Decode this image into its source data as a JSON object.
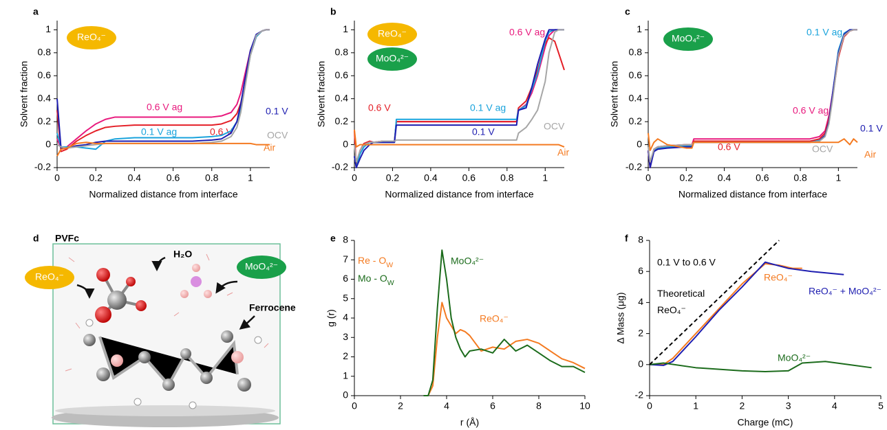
{
  "chart_data": [
    {
      "type": "line",
      "panel": "a",
      "xlabel": "Normalized distance from interface",
      "ylabel": "Solvent fraction",
      "xlim": [
        0,
        1.1
      ],
      "ylim": [
        -0.2,
        1.08
      ],
      "xticks": [
        0,
        0.2,
        0.4,
        0.6,
        0.8,
        1
      ],
      "yticks": [
        -0.2,
        0,
        0.2,
        0.4,
        0.6,
        0.8,
        1
      ],
      "badges": [
        {
          "text": "ReO₄⁻",
          "color": "#f5b800"
        }
      ],
      "x": [
        0,
        0.02,
        0.05,
        0.1,
        0.15,
        0.2,
        0.25,
        0.3,
        0.4,
        0.5,
        0.6,
        0.7,
        0.8,
        0.85,
        0.9,
        0.93,
        0.95,
        0.97,
        1.0,
        1.03,
        1.06,
        1.08,
        1.1
      ],
      "series": [
        {
          "name": "0.6 V ag",
          "color": "#e8197d",
          "values": [
            0.05,
            -0.03,
            -0.02,
            0.05,
            0.12,
            0.18,
            0.22,
            0.24,
            0.24,
            0.24,
            0.24,
            0.24,
            0.24,
            0.25,
            0.28,
            0.35,
            0.45,
            0.6,
            0.82,
            0.95,
            0.99,
            1.0,
            1.0
          ]
        },
        {
          "name": "0.6 V",
          "color": "#e41e26",
          "values": [
            0.3,
            -0.06,
            -0.04,
            0.03,
            0.08,
            0.12,
            0.15,
            0.16,
            0.17,
            0.17,
            0.17,
            0.17,
            0.17,
            0.18,
            0.21,
            0.27,
            0.36,
            0.52,
            0.78,
            0.94,
            0.99,
            1.0,
            1.0
          ]
        },
        {
          "name": "0.1 V ag",
          "color": "#19a3dc",
          "values": [
            0.1,
            -0.02,
            -0.02,
            -0.02,
            -0.03,
            -0.04,
            0.03,
            0.05,
            0.06,
            0.06,
            0.06,
            0.06,
            0.07,
            0.08,
            0.12,
            0.2,
            0.3,
            0.5,
            0.78,
            0.94,
            0.99,
            1.0,
            1.0
          ]
        },
        {
          "name": "0.1 V",
          "color": "#1d1db0",
          "values": [
            0.4,
            -0.03,
            -0.03,
            -0.01,
            0.0,
            0.02,
            0.03,
            0.03,
            0.03,
            0.03,
            0.03,
            0.03,
            0.04,
            0.05,
            0.1,
            0.2,
            0.35,
            0.55,
            0.82,
            0.96,
            0.99,
            1.0,
            1.0
          ]
        },
        {
          "name": "OCV",
          "color": "#a6a6a6",
          "values": [
            0.0,
            -0.02,
            -0.03,
            -0.02,
            -0.01,
            0.0,
            0.01,
            0.01,
            0.01,
            0.01,
            0.01,
            0.01,
            0.02,
            0.03,
            0.07,
            0.15,
            0.28,
            0.48,
            0.78,
            0.95,
            0.99,
            1.0,
            1.0
          ]
        },
        {
          "name": "Air",
          "color": "#f47a20",
          "values": [
            -0.1,
            -0.04,
            -0.03,
            0.01,
            0.02,
            0.01,
            0.01,
            0.01,
            0.01,
            0.01,
            0.01,
            0.01,
            0.01,
            0.01,
            0.01,
            0.01,
            0.01,
            0.01,
            0.01,
            0.0,
            0.0,
            0.0,
            0.0
          ]
        }
      ]
    },
    {
      "type": "line",
      "panel": "b",
      "xlabel": "Normalized distance from interface",
      "ylabel": "Solvent fraction",
      "xlim": [
        0,
        1.1
      ],
      "ylim": [
        -0.2,
        1.08
      ],
      "xticks": [
        0,
        0.2,
        0.4,
        0.6,
        0.8,
        1
      ],
      "yticks": [
        -0.2,
        0,
        0.2,
        0.4,
        0.6,
        0.8,
        1
      ],
      "badges": [
        {
          "text": "ReO₄⁻",
          "color": "#f5b800"
        },
        {
          "text": "MoO₄²⁻",
          "color": "#1aa04a"
        }
      ],
      "x": [
        0,
        0.01,
        0.03,
        0.05,
        0.08,
        0.1,
        0.15,
        0.21,
        0.22,
        0.3,
        0.5,
        0.7,
        0.85,
        0.86,
        0.9,
        0.93,
        0.96,
        1.0,
        1.02,
        1.05,
        1.07,
        1.1
      ],
      "series": [
        {
          "name": "0.6 V ag",
          "color": "#e8197d",
          "values": [
            -0.1,
            -0.2,
            -0.05,
            0.0,
            0.03,
            0.02,
            0.03,
            0.03,
            0.2,
            0.2,
            0.2,
            0.2,
            0.2,
            0.3,
            0.35,
            0.45,
            0.6,
            0.85,
            0.95,
            1.0,
            1.0,
            1.0
          ]
        },
        {
          "name": "0.6 V",
          "color": "#e41e26",
          "values": [
            0.12,
            -0.2,
            -0.05,
            0.01,
            0.03,
            0.02,
            0.03,
            0.03,
            0.2,
            0.2,
            0.2,
            0.2,
            0.2,
            0.32,
            0.38,
            0.5,
            0.65,
            0.88,
            0.93,
            0.9,
            0.8,
            0.65
          ]
        },
        {
          "name": "0.1 V ag",
          "color": "#19a3dc",
          "values": [
            -0.1,
            -0.2,
            -0.08,
            -0.02,
            0.02,
            0.02,
            0.02,
            0.02,
            0.22,
            0.22,
            0.22,
            0.22,
            0.22,
            0.3,
            0.34,
            0.48,
            0.62,
            0.9,
            0.98,
            1.0,
            1.0,
            1.0
          ]
        },
        {
          "name": "0.1 V",
          "color": "#1d1db0",
          "values": [
            -0.1,
            -0.2,
            -0.12,
            -0.05,
            0.0,
            0.02,
            0.02,
            0.02,
            0.17,
            0.17,
            0.17,
            0.17,
            0.17,
            0.3,
            0.32,
            0.5,
            0.7,
            0.92,
            1.0,
            1.0,
            1.0,
            1.0
          ]
        },
        {
          "name": "OCV",
          "color": "#a6a6a6",
          "values": [
            0,
            -0.15,
            -0.05,
            0,
            0.02,
            0.02,
            0.03,
            0.03,
            0.04,
            0.04,
            0.04,
            0.04,
            0.04,
            0.1,
            0.15,
            0.22,
            0.3,
            0.55,
            0.8,
            0.98,
            1.0,
            1.0
          ]
        },
        {
          "name": "Air",
          "color": "#f47a20",
          "values": [
            0.13,
            -0.02,
            0,
            0,
            0,
            0,
            0,
            0,
            0,
            0,
            0,
            0,
            0,
            0,
            0,
            0,
            0,
            0,
            0,
            0,
            0,
            -0.02
          ]
        }
      ]
    },
    {
      "type": "line",
      "panel": "c",
      "xlabel": "Normalized distance from interface",
      "ylabel": "Solvent fraction",
      "xlim": [
        0,
        1.1
      ],
      "ylim": [
        -0.2,
        1.08
      ],
      "xticks": [
        0,
        0.2,
        0.4,
        0.6,
        0.8,
        1
      ],
      "yticks": [
        -0.2,
        0,
        0.2,
        0.4,
        0.6,
        0.8,
        1
      ],
      "badges": [
        {
          "text": "MoO₄²⁻",
          "color": "#1aa04a"
        }
      ],
      "x": [
        0,
        0.01,
        0.03,
        0.05,
        0.1,
        0.2,
        0.23,
        0.24,
        0.3,
        0.5,
        0.7,
        0.85,
        0.9,
        0.93,
        0.95,
        0.97,
        1.0,
        1.03,
        1.06,
        1.08,
        1.1
      ],
      "series": [
        {
          "name": "0.1 V ag",
          "color": "#19a3dc",
          "values": [
            -0.05,
            -0.2,
            -0.05,
            -0.03,
            -0.02,
            -0.01,
            -0.01,
            0.03,
            0.03,
            0.03,
            0.03,
            0.03,
            0.04,
            0.08,
            0.2,
            0.45,
            0.82,
            0.97,
            1.0,
            1.0,
            1.0
          ]
        },
        {
          "name": "0.6 V ag",
          "color": "#e8197d",
          "values": [
            -0.05,
            -0.2,
            -0.04,
            -0.02,
            -0.01,
            0.0,
            0.0,
            0.05,
            0.05,
            0.05,
            0.05,
            0.05,
            0.07,
            0.12,
            0.25,
            0.45,
            0.78,
            0.95,
            0.99,
            1.0,
            1.0
          ]
        },
        {
          "name": "0.6 V",
          "color": "#e41e26",
          "values": [
            -0.05,
            -0.2,
            -0.04,
            -0.02,
            -0.01,
            0.0,
            0.0,
            0.03,
            0.03,
            0.03,
            0.03,
            0.03,
            0.05,
            0.1,
            0.22,
            0.42,
            0.76,
            0.94,
            0.99,
            1.0,
            1.0
          ]
        },
        {
          "name": "0.1 V",
          "color": "#1d1db0",
          "values": [
            -0.05,
            -0.2,
            -0.06,
            -0.04,
            -0.03,
            -0.02,
            -0.02,
            0.02,
            0.02,
            0.02,
            0.02,
            0.02,
            0.03,
            0.08,
            0.2,
            0.45,
            0.8,
            0.96,
            1.0,
            1.0,
            1.0
          ]
        },
        {
          "name": "OCV",
          "color": "#a6a6a6",
          "values": [
            -0.02,
            -0.15,
            -0.04,
            -0.02,
            -0.01,
            0.0,
            0.0,
            0.02,
            0.02,
            0.02,
            0.02,
            0.02,
            0.03,
            0.07,
            0.18,
            0.4,
            0.78,
            0.95,
            0.99,
            1.0,
            1.0
          ]
        },
        {
          "name": "Air",
          "color": "#f47a20",
          "values": [
            0.1,
            -0.05,
            0.02,
            0.05,
            0.0,
            -0.03,
            -0.03,
            0.02,
            0.02,
            0.02,
            0.02,
            0.02,
            0.02,
            0.02,
            0.02,
            0.02,
            0.02,
            0.05,
            0.0,
            0.05,
            0.02
          ]
        }
      ]
    },
    {
      "type": "line",
      "panel": "e",
      "xlabel": "r (Å)",
      "ylabel": "g (r)",
      "xlim": [
        0,
        10
      ],
      "ylim": [
        0,
        8
      ],
      "xticks": [
        0,
        2,
        4,
        6,
        8,
        10
      ],
      "yticks": [
        0,
        1,
        2,
        3,
        4,
        5,
        6,
        7,
        8
      ],
      "annotations": [
        "MoO₄²⁻",
        "ReO₄⁻"
      ],
      "x": [
        3,
        3.2,
        3.4,
        3.6,
        3.8,
        4.0,
        4.2,
        4.4,
        4.6,
        4.8,
        5.0,
        5.5,
        6,
        6.5,
        7,
        7.5,
        8,
        8.5,
        9,
        9.5,
        10
      ],
      "series": [
        {
          "name": "Re - O",
          "name_sub": "W",
          "color": "#f47a20",
          "values": [
            0,
            0,
            0.5,
            3,
            4.8,
            4.0,
            3.6,
            3.2,
            3.4,
            3.3,
            3.1,
            2.3,
            2.5,
            2.4,
            2.8,
            2.9,
            2.7,
            2.3,
            1.9,
            1.7,
            1.4
          ]
        },
        {
          "name": "Mo - O",
          "name_sub": "W",
          "color": "#1b6b1b",
          "values": [
            0,
            0,
            0.8,
            4.5,
            7.5,
            6.0,
            4.0,
            3.0,
            2.4,
            2.0,
            2.3,
            2.4,
            2.2,
            2.9,
            2.3,
            2.6,
            2.2,
            1.8,
            1.5,
            1.5,
            1.2
          ]
        }
      ]
    },
    {
      "type": "line",
      "panel": "f",
      "xlabel": "Charge (mC)",
      "ylabel": "Δ Mass (μg)",
      "xlim": [
        0,
        5
      ],
      "ylim": [
        -2,
        8
      ],
      "xticks": [
        0,
        1,
        2,
        3,
        4,
        5
      ],
      "yticks": [
        -2,
        0,
        2,
        4,
        6,
        8
      ],
      "annotations": [
        "0.1 V to 0.6 V"
      ],
      "series": [
        {
          "name": "ReO₄⁻",
          "color": "#f47a20",
          "x": [
            0,
            0.3,
            0.5,
            1,
            1.5,
            2,
            2.5,
            2.8,
            3.1,
            3.3
          ],
          "values": [
            0,
            0,
            0.4,
            2.0,
            3.6,
            5.2,
            6.5,
            6.4,
            6.2,
            6.2
          ]
        },
        {
          "name": "ReO₄⁻ + MoO₄²⁻",
          "color": "#1d1db0",
          "x": [
            0,
            0.3,
            0.5,
            1,
            1.5,
            2,
            2.5,
            3,
            3.5,
            4.2
          ],
          "values": [
            0,
            -0.05,
            0.2,
            1.8,
            3.5,
            5.0,
            6.6,
            6.2,
            6.0,
            5.8
          ]
        },
        {
          "name": "MoO₄²⁻",
          "color": "#1b6b1b",
          "x": [
            0,
            0.3,
            1,
            2,
            2.5,
            3,
            3.3,
            3.8,
            4.3,
            4.8
          ],
          "values": [
            0,
            0.1,
            -0.2,
            -0.4,
            -0.45,
            -0.4,
            0.1,
            0.2,
            0.0,
            -0.2
          ]
        },
        {
          "name": "Theoretical",
          "name_sub": "ReO₄⁻",
          "color": "#000000",
          "dash": true,
          "x": [
            0,
            2.8
          ],
          "values": [
            0,
            8
          ]
        }
      ]
    }
  ],
  "illustration": {
    "panel": "d",
    "title": "PVFc",
    "badges": [
      {
        "text": "ReO₄⁻",
        "color": "#f5b800"
      },
      {
        "text": "MoO₄²⁻",
        "color": "#1aa04a"
      }
    ],
    "labels": [
      "H₂O",
      "Ferrocene"
    ]
  }
}
